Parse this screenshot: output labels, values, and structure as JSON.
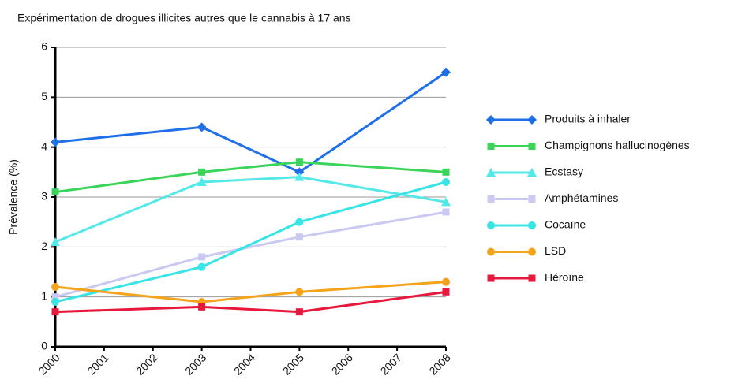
{
  "chart_data": {
    "type": "line",
    "title": "Expérimentation de drogues illicites autres que le cannabis à 17 ans",
    "y_label": "Prévalence (%)",
    "x": [
      2000,
      2003,
      2005,
      2008
    ],
    "xlim": [
      2000,
      2008
    ],
    "xticks": [
      2000,
      2001,
      2002,
      2003,
      2004,
      2005,
      2006,
      2007,
      2008
    ],
    "ylim": [
      0,
      6
    ],
    "yticks": [
      0,
      1,
      2,
      3,
      4,
      5,
      6
    ],
    "grid": true,
    "legend": "right",
    "series": [
      {
        "name": "Produits à inhaler",
        "color": "#1f6fe8",
        "marker": "diamond",
        "values": [
          4.1,
          4.4,
          3.5,
          5.5
        ]
      },
      {
        "name": "Champignons hallucinogènes",
        "color": "#3ad45a",
        "marker": "square",
        "values": [
          3.1,
          3.5,
          3.7,
          3.5
        ]
      },
      {
        "name": "Ecstasy",
        "color": "#55e8e8",
        "marker": "triangle",
        "values": [
          2.1,
          3.3,
          3.4,
          2.9
        ]
      },
      {
        "name": "Amphétamines",
        "color": "#c9c9f2",
        "marker": "square",
        "values": [
          1.0,
          1.8,
          2.2,
          2.7
        ]
      },
      {
        "name": "Cocaïne",
        "color": "#38e4e4",
        "marker": "circle",
        "values": [
          0.9,
          1.6,
          2.5,
          3.3
        ]
      },
      {
        "name": "LSD",
        "color": "#f5a31a",
        "marker": "circle",
        "values": [
          1.2,
          0.9,
          1.1,
          1.3
        ]
      },
      {
        "name": "Héroïne",
        "color": "#e8173c",
        "marker": "square",
        "values": [
          0.7,
          0.8,
          0.7,
          1.1
        ]
      }
    ]
  }
}
